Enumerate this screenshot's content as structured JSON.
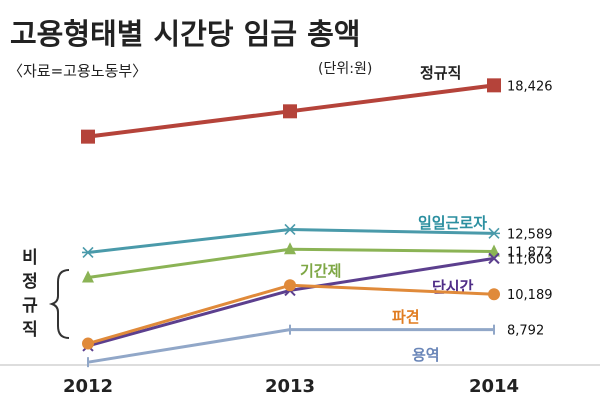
{
  "chart_data": {
    "type": "line",
    "title": "고용형태별 시간당 임금 총액",
    "source": "〈자료=고용노동부〉",
    "unit": "(단위:원)",
    "categories": [
      "2012",
      "2013",
      "2014"
    ],
    "group_label": "비정규직",
    "grid": false,
    "series": [
      {
        "name": "정규직",
        "values": [
          16403,
          17402,
          18426
        ],
        "color": "#b5433a",
        "marker": "square",
        "label_color": "#222222",
        "value_label": "18,426"
      },
      {
        "name": "일일근로자",
        "values": [
          11836,
          12742,
          12589
        ],
        "color": "#4a9aaa",
        "marker": "asterisk",
        "label_color": "#2b8fa0",
        "value_label": "12,589"
      },
      {
        "name": "기간제",
        "values": [
          10850,
          11964,
          11872
        ],
        "color": "#8bb355",
        "marker": "triangle",
        "label_color": "#7ea745",
        "value_label": "11,872"
      },
      {
        "name": "단시간",
        "values": [
          8150,
          10340,
          11603
        ],
        "color": "#5c3f8e",
        "marker": "x",
        "label_color": "#4f2c87",
        "value_label": "11,603"
      },
      {
        "name": "파견",
        "values": [
          8244,
          10543,
          10189
        ],
        "color": "#e08a3a",
        "marker": "circle",
        "label_color": "#e07c20",
        "value_label": "10,189"
      },
      {
        "name": "용역",
        "values": [
          7510,
          8792,
          8792
        ],
        "color": "#91a7c8",
        "marker": "bar",
        "label_color": "#6a86b8",
        "value_label": "8,792"
      }
    ]
  }
}
